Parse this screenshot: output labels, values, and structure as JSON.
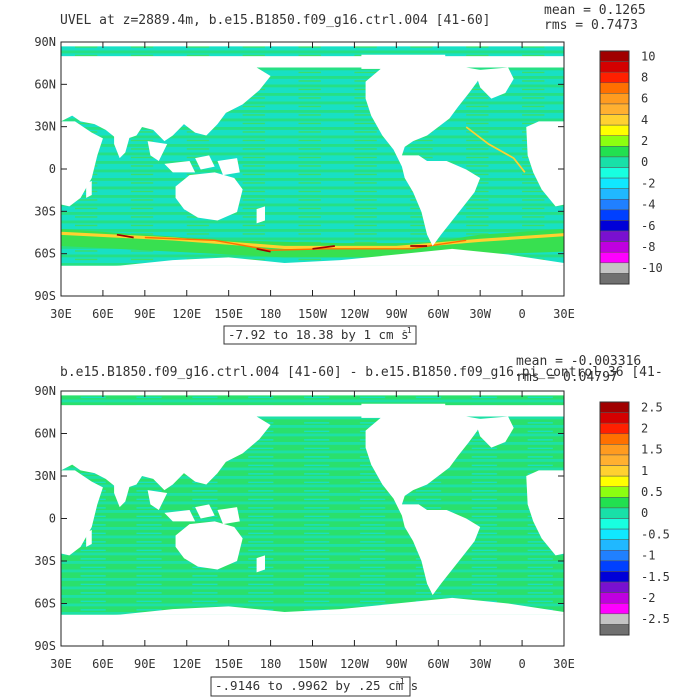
{
  "chart_data": [
    {
      "type": "heatmap",
      "title": "UVEL at z=2889.4m, b.e15.B1850.f09_g16.ctrl.004 [41-60]",
      "stats": {
        "mean": "mean = 0.1265",
        "rms": "rms = 0.7473"
      },
      "x_ticks": [
        "30E",
        "60E",
        "90E",
        "120E",
        "150E",
        "180",
        "150W",
        "120W",
        "90W",
        "60W",
        "30W",
        "0",
        "30E"
      ],
      "y_ticks": [
        "90N",
        "60N",
        "30N",
        "0",
        "30S",
        "60S",
        "90S"
      ],
      "range_label": "-7.92 to 18.38 by 1 cm s",
      "units_exp": "-1",
      "colorbar": {
        "labels": [
          "10",
          "8",
          "6",
          "4",
          "2",
          "0",
          "-2",
          "-4",
          "-6",
          "-8",
          "-10"
        ],
        "colors": [
          "#a00000",
          "#d40000",
          "#ff2000",
          "#ff7000",
          "#ff9b1f",
          "#ffb030",
          "#ffd130",
          "#ffff00",
          "#8cff10",
          "#22e050",
          "#18e0a8",
          "#18ffe0",
          "#10e8ff",
          "#20b8ff",
          "#2080ff",
          "#0040ff",
          "#0000d8",
          "#7a10d0",
          "#c000e0",
          "#ff00ff",
          "#c4c4c4",
          "#707070"
        ]
      }
    },
    {
      "type": "heatmap",
      "title": "b.e15.B1850.f09_g16.ctrl.004 [41-60] - b.e15.B1850.f09_g16.pi_control.36 [41-",
      "stats": {
        "mean": "mean = -0.003316",
        "rms": "rms = 0.04797"
      },
      "x_ticks": [
        "30E",
        "60E",
        "90E",
        "120E",
        "150E",
        "180",
        "150W",
        "120W",
        "90W",
        "60W",
        "30W",
        "0",
        "30E"
      ],
      "y_ticks": [
        "90N",
        "60N",
        "30N",
        "0",
        "30S",
        "60S",
        "90S"
      ],
      "range_label": "-.9146 to .9962 by .25 cm s",
      "units_exp": "-1",
      "colorbar": {
        "labels": [
          "2.5",
          "2",
          "1.5",
          "1",
          "0.5",
          "0",
          "-0.5",
          "-1",
          "-1.5",
          "-2",
          "-2.5"
        ],
        "colors": [
          "#a00000",
          "#d40000",
          "#ff2000",
          "#ff7000",
          "#ff9b1f",
          "#ffb030",
          "#ffd130",
          "#ffff00",
          "#8cff10",
          "#22e050",
          "#18e0a8",
          "#18ffe0",
          "#10e8ff",
          "#20b8ff",
          "#2080ff",
          "#0040ff",
          "#0000d8",
          "#7a10d0",
          "#c000e0",
          "#ff00ff",
          "#c4c4c4",
          "#707070"
        ]
      }
    }
  ]
}
